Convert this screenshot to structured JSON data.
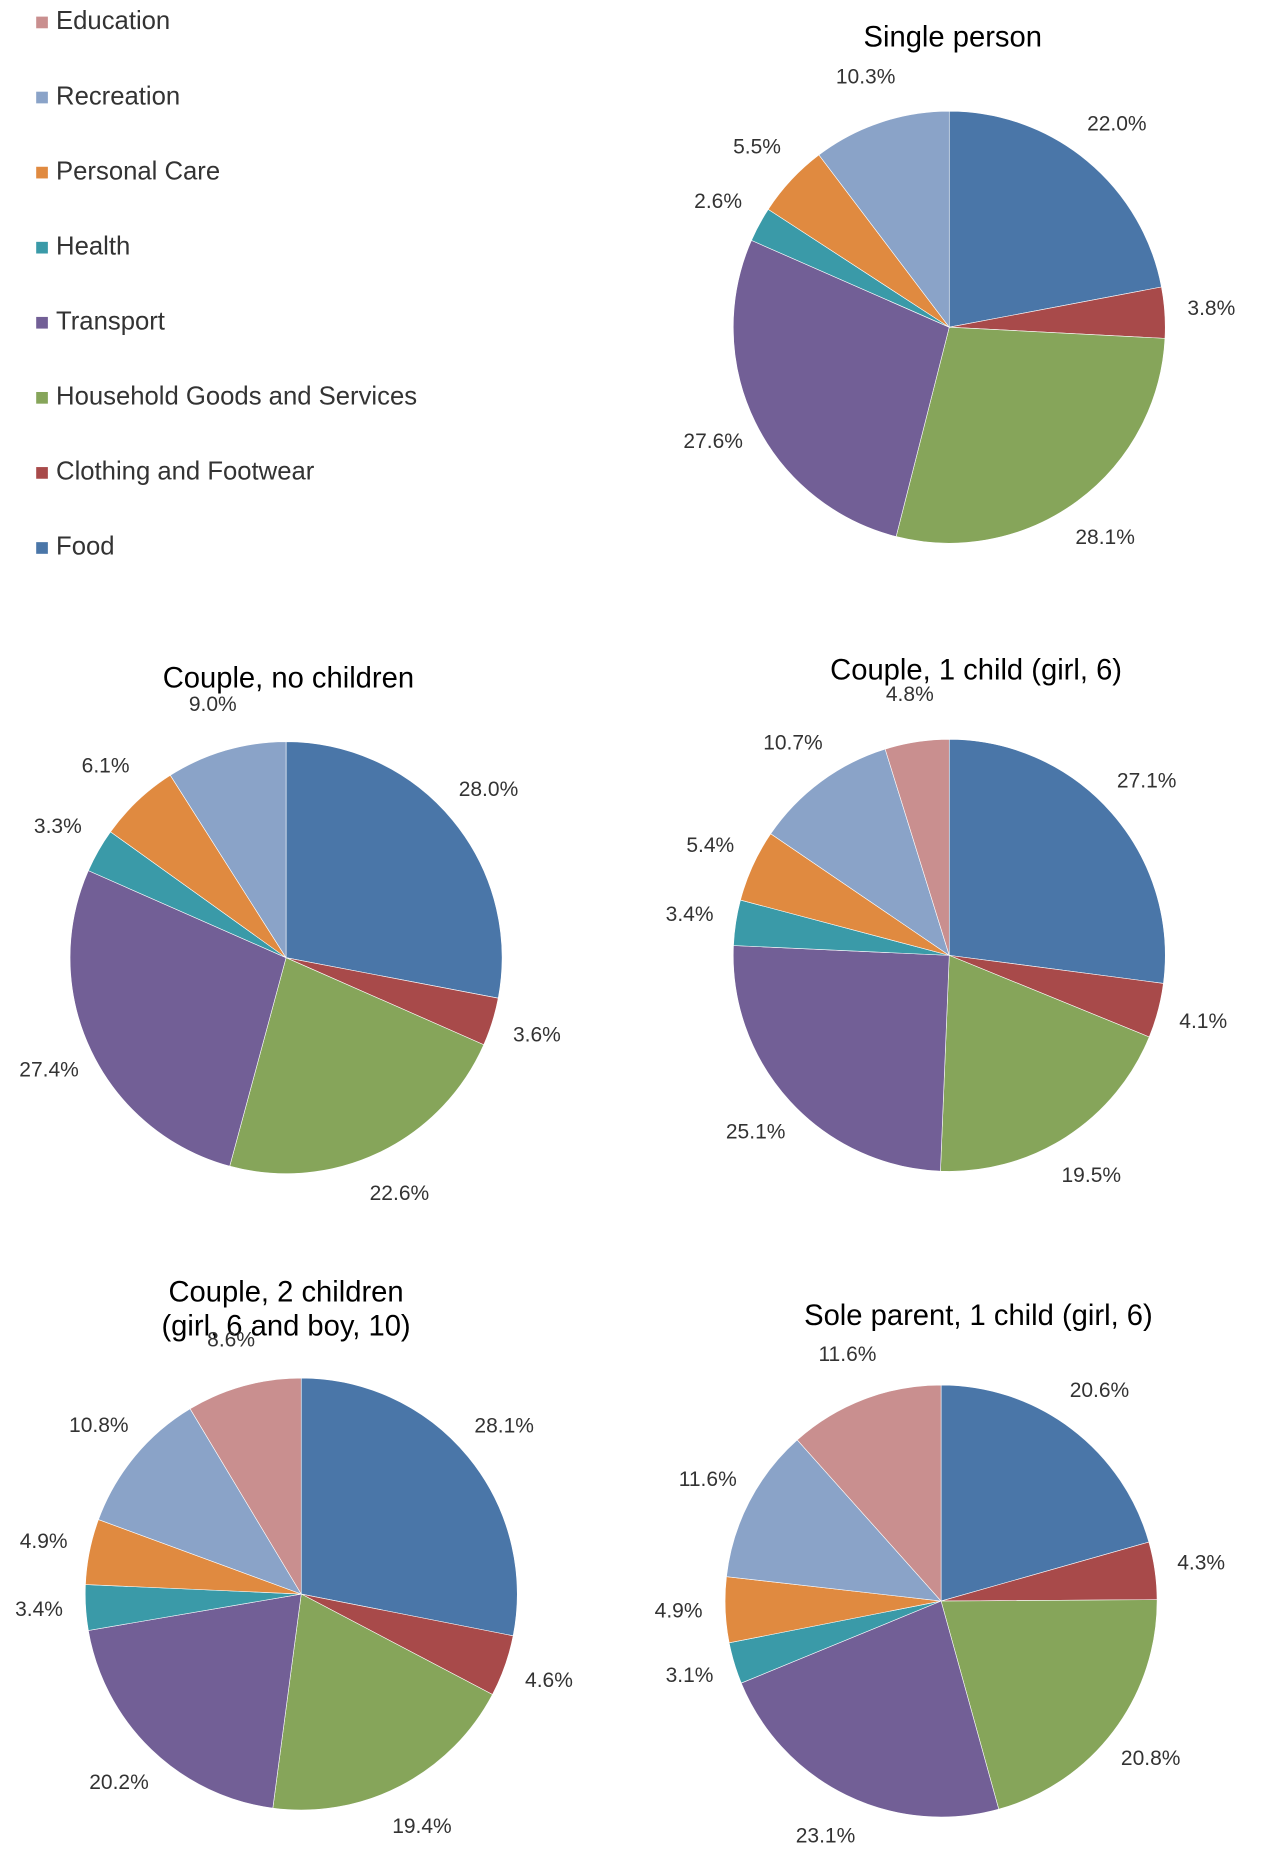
{
  "legend": {
    "categories": [
      "Food",
      "Clothing and Footwear",
      "Household Goods and Services",
      "Transport",
      "Health",
      "Personal Care",
      "Recreation",
      "Education"
    ],
    "colors": [
      "#4a76a8",
      "#a84a4a",
      "#86a55a",
      "#725f96",
      "#3a9aa8",
      "#e08a40",
      "#8aa3c8",
      "#c98f8f"
    ]
  },
  "chart_data": [
    {
      "type": "pie",
      "title": "Single person",
      "values": [
        22.0,
        3.8,
        28.1,
        27.6,
        2.6,
        5.5,
        10.3,
        null
      ],
      "value_labels": [
        "22.0%",
        "3.8%",
        "28.1%",
        "27.6%",
        "2.6%",
        "5.5%",
        "10.3%",
        null
      ]
    },
    {
      "type": "pie",
      "title": "Couple, no children",
      "values": [
        28.0,
        3.6,
        22.6,
        27.4,
        3.3,
        6.1,
        9.0,
        null
      ],
      "value_labels": [
        "28.0%",
        "3.6%",
        "22.6%",
        "27.4%",
        "3.3%",
        "6.1%",
        "9.0%",
        null
      ]
    },
    {
      "type": "pie",
      "title": "Couple, 1 child (girl, 6)",
      "values": [
        27.1,
        4.1,
        19.5,
        25.1,
        3.4,
        5.4,
        10.7,
        4.8
      ],
      "value_labels": [
        "27.1%",
        "4.1%",
        "19.5%",
        "25.1%",
        "3.4%",
        "5.4%",
        "10.7%",
        "4.8%"
      ]
    },
    {
      "type": "pie",
      "title": [
        "Couple, 2 children",
        "(girl, 6 and boy, 10)"
      ],
      "values": [
        28.1,
        4.6,
        19.4,
        20.2,
        3.4,
        4.9,
        10.8,
        8.6
      ],
      "value_labels": [
        "28.1%",
        "4.6%",
        "19.4%",
        "20.2%",
        "3.4%",
        "4.9%",
        "10.8%",
        "8.6%"
      ]
    },
    {
      "type": "pie",
      "title": "Sole parent, 1 child (girl, 6)",
      "values": [
        20.6,
        4.3,
        20.8,
        23.1,
        3.1,
        4.9,
        11.6,
        11.6
      ],
      "value_labels": [
        "20.6%",
        "4.3%",
        "20.8%",
        "23.1%",
        "3.1%",
        "4.9%",
        "11.6%",
        "11.6%"
      ]
    }
  ]
}
